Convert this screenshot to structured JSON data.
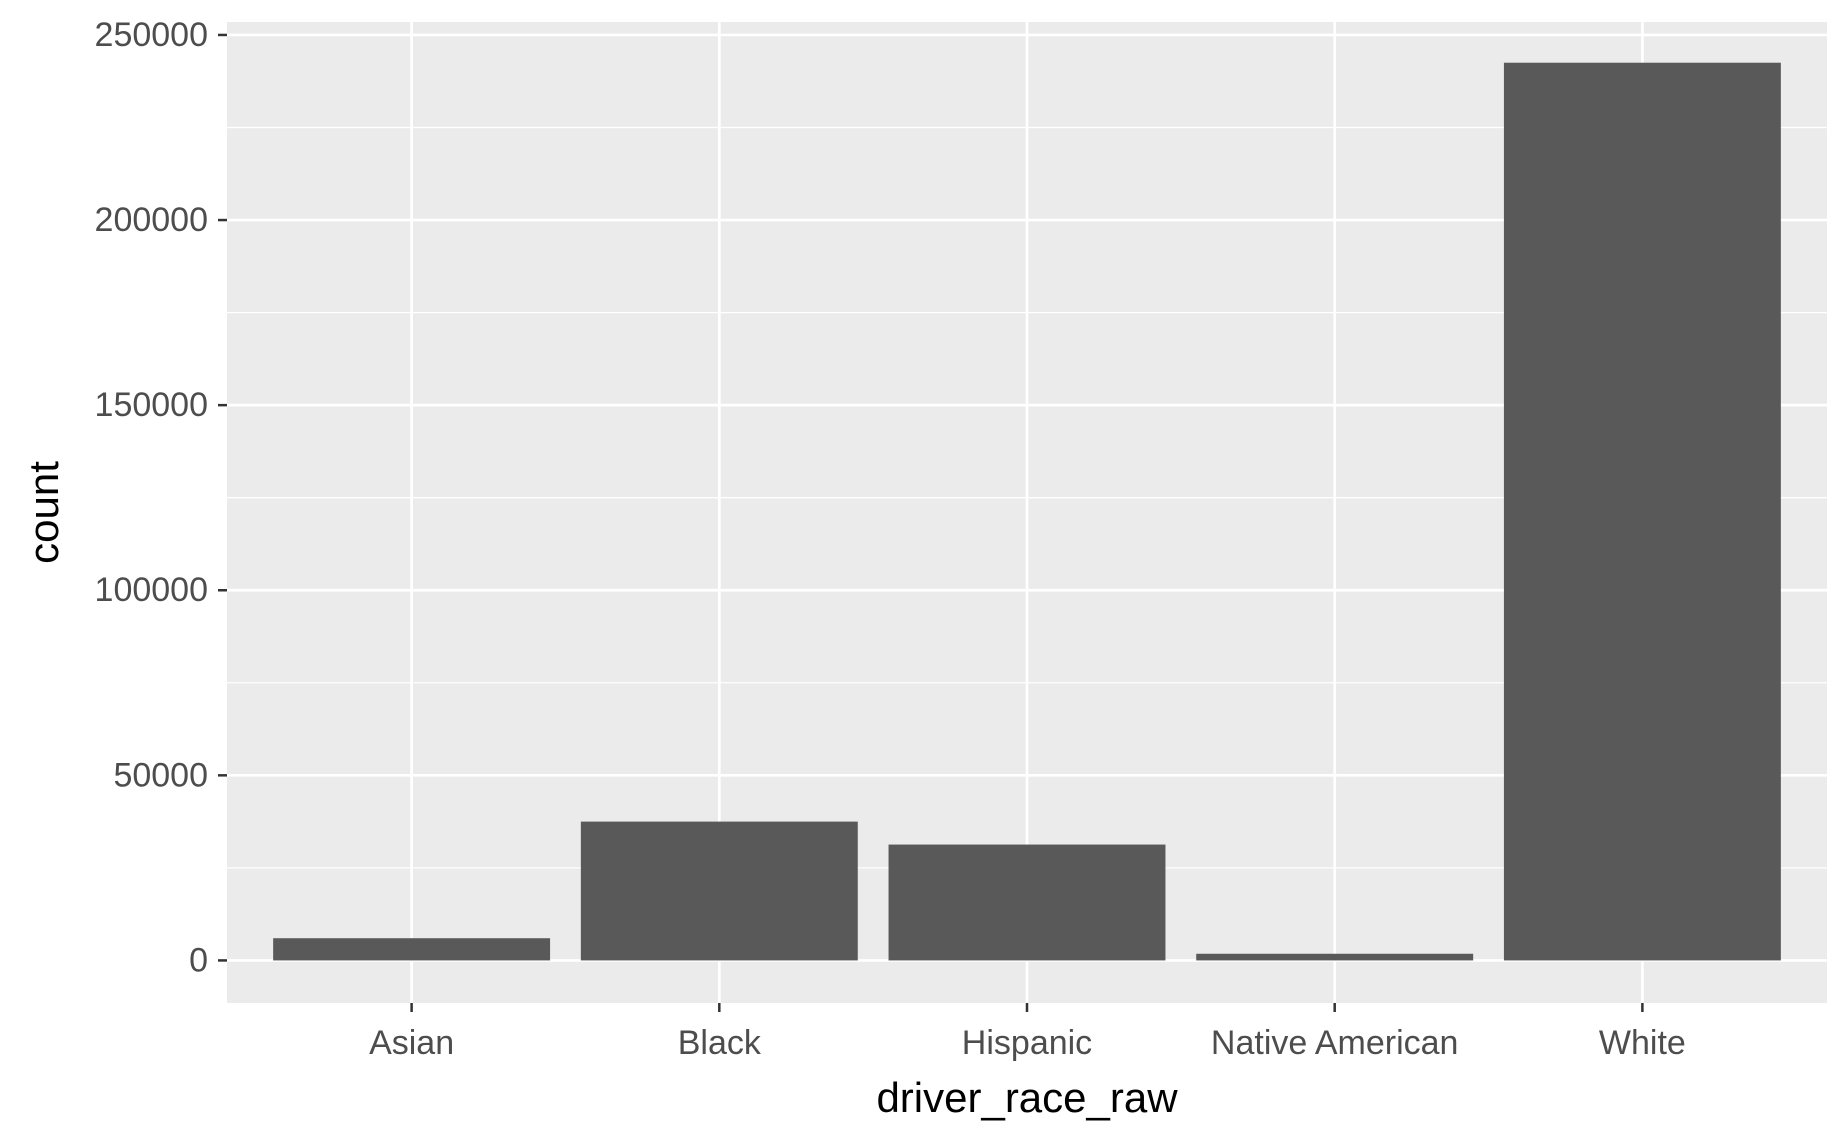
{
  "chart_data": {
    "type": "bar",
    "title": "",
    "xlabel": "driver_race_raw",
    "ylabel": "count",
    "categories": [
      "Asian",
      "Black",
      "Hispanic",
      "Native American",
      "White"
    ],
    "values": [
      6000,
      37500,
      31300,
      1800,
      242500
    ],
    "ylim": [
      -11500,
      253500
    ],
    "yticks": [
      0,
      50000,
      100000,
      150000,
      200000,
      250000
    ],
    "ytick_labels": [
      "0",
      "50000",
      "100000",
      "150000",
      "200000",
      "250000"
    ],
    "grid": true,
    "legend": "none",
    "colors": {
      "panel_background": "#EBEBEB",
      "grid": "#FFFFFF",
      "bar_fill": "#595959",
      "tick_text": "#4D4D4D",
      "tick_mark": "#333333",
      "axis_title": "#000000"
    }
  }
}
